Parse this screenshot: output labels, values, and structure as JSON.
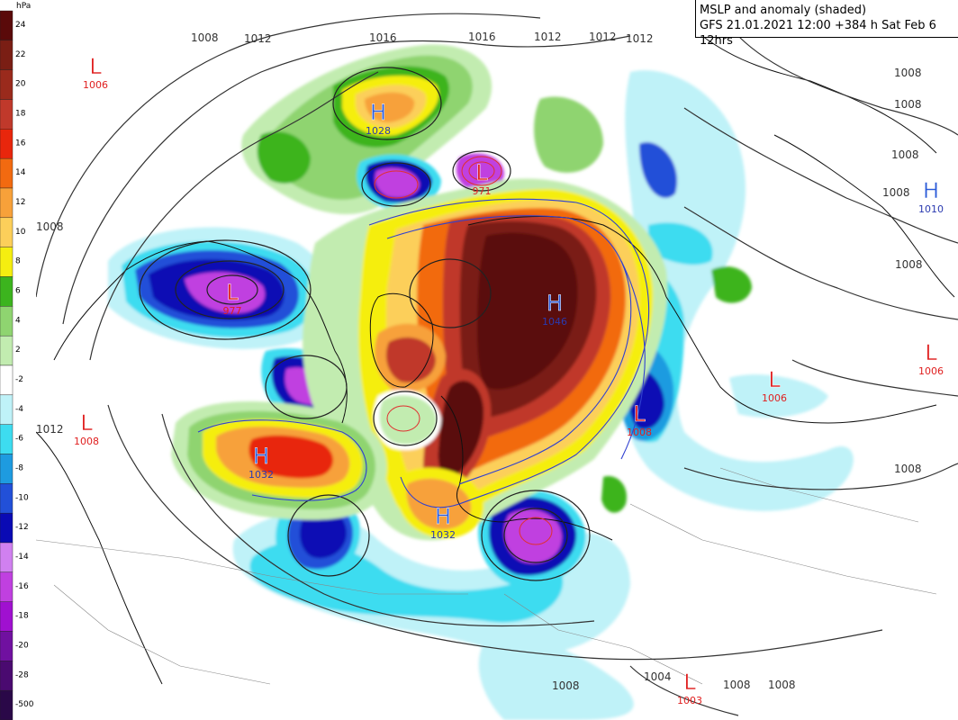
{
  "title": {
    "line1": "MSLP and anomaly (shaded)",
    "line2": "GFS 21.01.2021 12:00 +384 h Sat Feb 6 12hrs"
  },
  "legend": {
    "unit": "hPa",
    "bands": [
      {
        "label": "24",
        "color": "#5a0a0a"
      },
      {
        "label": "22",
        "color": "#7a1e14"
      },
      {
        "label": "20",
        "color": "#9a2a1c"
      },
      {
        "label": "18",
        "color": "#c0392b"
      },
      {
        "label": "16",
        "color": "#e8260c"
      },
      {
        "label": "14",
        "color": "#f26a10"
      },
      {
        "label": "12",
        "color": "#f7a13a"
      },
      {
        "label": "10",
        "color": "#fccf5a"
      },
      {
        "label": "8",
        "color": "#f5ee10"
      },
      {
        "label": "6",
        "color": "#3cb41e"
      },
      {
        "label": "4",
        "color": "#8fd470"
      },
      {
        "label": "2",
        "color": "#c2ecb0"
      },
      {
        "label": "-2",
        "color": "#ffffff"
      },
      {
        "label": "-4",
        "color": "#bff2f8"
      },
      {
        "label": "-6",
        "color": "#3ddcf0"
      },
      {
        "label": "-8",
        "color": "#1e9be0"
      },
      {
        "label": "-10",
        "color": "#2250d8"
      },
      {
        "label": "-12",
        "color": "#0a0ab4"
      },
      {
        "label": "-14",
        "color": "#d080f0"
      },
      {
        "label": "-16",
        "color": "#c040e0"
      },
      {
        "label": "-18",
        "color": "#a010d0"
      },
      {
        "label": "-20",
        "color": "#7010a0"
      },
      {
        "label": "-28",
        "color": "#4a0a70"
      },
      {
        "label": "-500",
        "color": "#2a0848"
      }
    ]
  },
  "pressure_centers": [
    {
      "type": "L",
      "value": "1006",
      "color": "#e02020",
      "valColor": "#e02020"
    },
    {
      "type": "H",
      "value": "1028",
      "color": "#2a5ad8",
      "valColor": "#2a3ab0"
    },
    {
      "type": "L",
      "value": "971",
      "color": "#e02020",
      "valColor": "#e02020"
    },
    {
      "type": "L",
      "value": "977",
      "color": "#e02020",
      "valColor": "#e02020"
    },
    {
      "type": "H",
      "value": "1046",
      "color": "#2a5ad8",
      "valColor": "#2a3ab0"
    },
    {
      "type": "H",
      "value": "1010",
      "color": "#2a5ad8",
      "valColor": "#2a3ab0"
    },
    {
      "type": "L",
      "value": "1006",
      "color": "#e02020",
      "valColor": "#e02020"
    },
    {
      "type": "L",
      "value": "1006",
      "color": "#e02020",
      "valColor": "#e02020"
    },
    {
      "type": "L",
      "value": "1008",
      "color": "#e02020",
      "valColor": "#e02020"
    },
    {
      "type": "L",
      "value": "1008",
      "color": "#e02020",
      "valColor": "#e02020"
    },
    {
      "type": "H",
      "value": "1032",
      "color": "#2a5ad8",
      "valColor": "#2a3ab0"
    },
    {
      "type": "H",
      "value": "1032",
      "color": "#2a5ad8",
      "valColor": "#2a3ab0"
    },
    {
      "type": "L",
      "value": "1003",
      "color": "#e02020",
      "valColor": "#e02020"
    }
  ],
  "isobar_labels": [
    "1008",
    "1012",
    "1016",
    "1016",
    "1012",
    "1012",
    "1012",
    "1008",
    "1008",
    "1008",
    "1008",
    "1008",
    "1008",
    "1012",
    "1008",
    "1004",
    "1008",
    "1008",
    "1008"
  ]
}
